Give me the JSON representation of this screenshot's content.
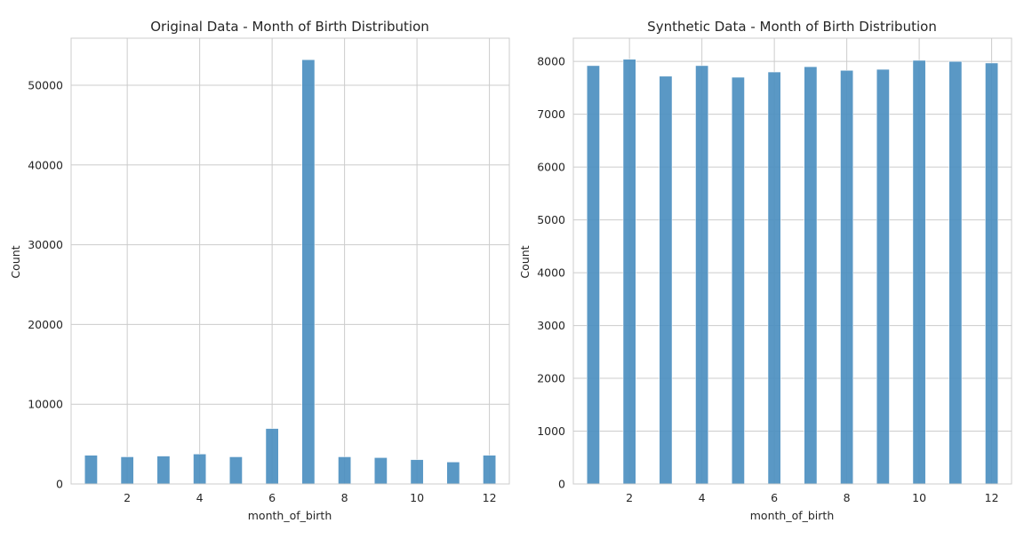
{
  "chart_data": [
    {
      "type": "bar",
      "title": "Original Data - Month of Birth Distribution",
      "xlabel": "month_of_birth",
      "ylabel": "Count",
      "x": [
        1,
        2,
        3,
        4,
        5,
        6,
        7,
        8,
        9,
        10,
        11,
        12
      ],
      "values": [
        3600,
        3400,
        3500,
        3750,
        3400,
        6950,
        53200,
        3400,
        3300,
        3050,
        2750,
        3600
      ],
      "xlim": [
        0.45,
        12.55
      ],
      "ylim": [
        0,
        55900
      ],
      "xticks": [
        2,
        4,
        6,
        8,
        10,
        12
      ],
      "yticks": [
        0,
        10000,
        20000,
        30000,
        40000,
        50000
      ],
      "grid": true,
      "color": "#4c8fc0"
    },
    {
      "type": "bar",
      "title": "Synthetic Data - Month of Birth Distribution",
      "xlabel": "month_of_birth",
      "ylabel": "Count",
      "x": [
        1,
        2,
        3,
        4,
        5,
        6,
        7,
        8,
        9,
        10,
        11,
        12
      ],
      "values": [
        7920,
        8040,
        7720,
        7920,
        7700,
        7800,
        7900,
        7830,
        7850,
        8020,
        8000,
        7970
      ],
      "xlim": [
        0.45,
        12.55
      ],
      "ylim": [
        0,
        8440
      ],
      "xticks": [
        2,
        4,
        6,
        8,
        10,
        12
      ],
      "yticks": [
        0,
        1000,
        2000,
        3000,
        4000,
        5000,
        6000,
        7000,
        8000
      ],
      "grid": true,
      "color": "#4c8fc0"
    }
  ]
}
